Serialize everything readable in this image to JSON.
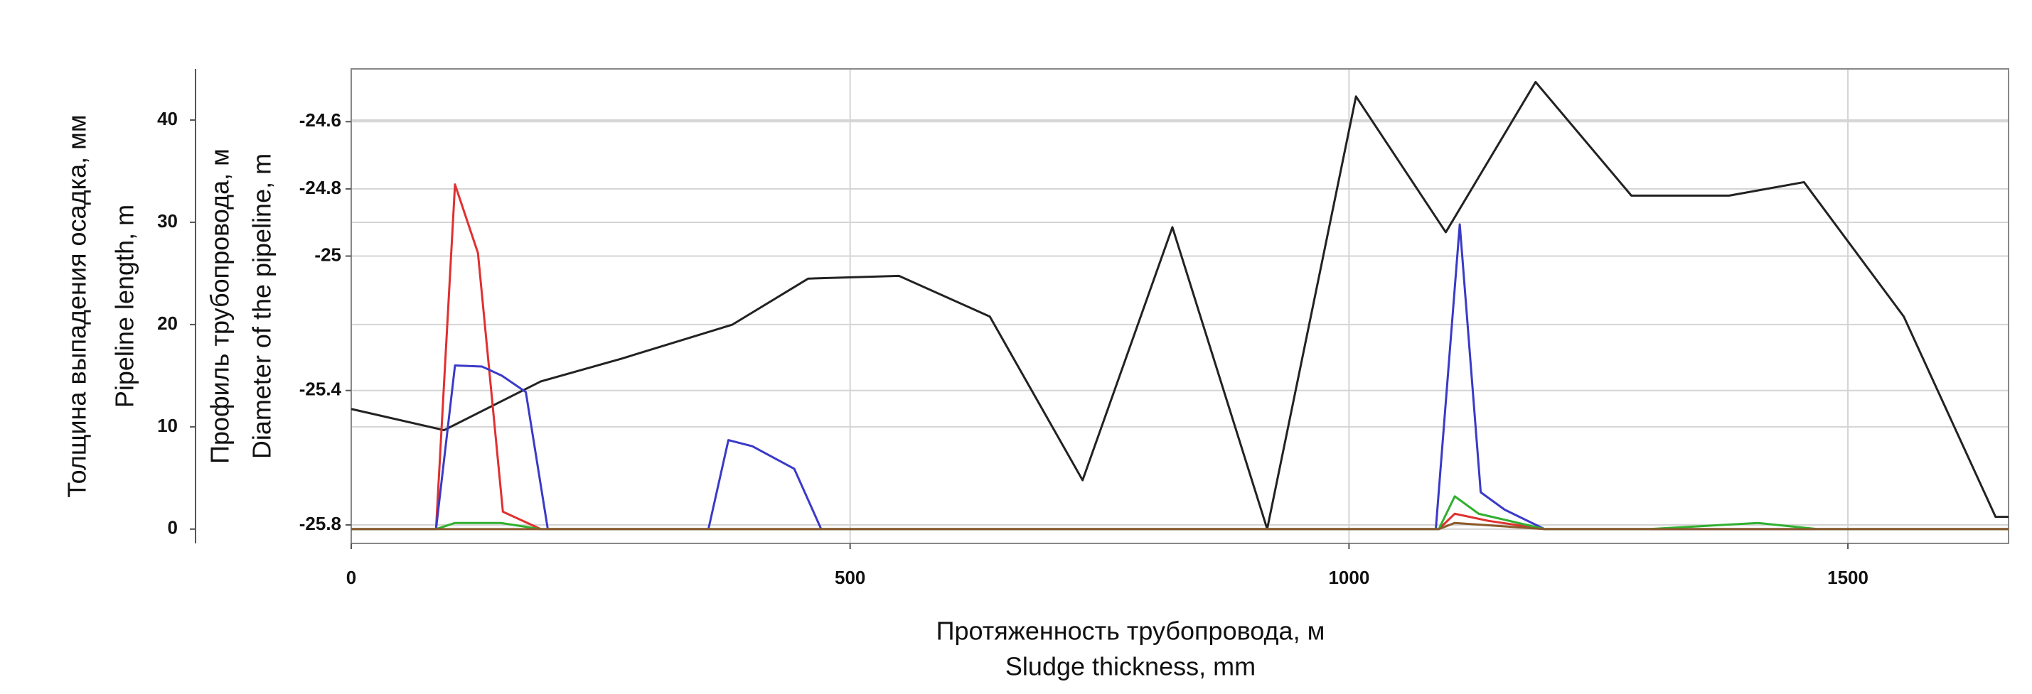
{
  "chart_data": {
    "type": "line",
    "xlabel": [
      "Протяженность трубопровода, м",
      "Sludge thickness, mm"
    ],
    "ylabel": [
      "Толщина выпадения осадка, мм",
      "Pipeline length, m"
    ],
    "y2label": [
      "Профиль трубопровода, м",
      "Diameter of the pipeline, m"
    ],
    "xlim": [
      0,
      1661
    ],
    "xticks": [
      0,
      500,
      1000,
      1500
    ],
    "ylim": [
      -1.4,
      45
    ],
    "yticks": [
      0,
      10,
      20,
      30,
      40
    ],
    "y2lim": [
      -25.855,
      -24.443
    ],
    "y2ticks": [
      -25.8,
      -25.4,
      -25,
      -24.8,
      -24.6
    ],
    "grid": true,
    "series": [
      {
        "color": "#222222",
        "axis": "y2",
        "x": [
          0,
          93,
          190,
          270,
          382,
          458,
          549,
          640,
          733,
          823,
          918,
          1007,
          1097,
          1187,
          1283,
          1381,
          1456,
          1556,
          1648,
          1661
        ],
        "values": [
          -25.455,
          -25.518,
          -25.373,
          -25.306,
          -25.204,
          -25.067,
          -25.059,
          -25.18,
          -25.667,
          -24.914,
          -25.812,
          -24.525,
          -24.929,
          -24.482,
          -24.82,
          -24.82,
          -24.78,
          -25.18,
          -25.776,
          -25.776
        ]
      },
      {
        "color": "#e03030",
        "x": [
          0,
          85,
          104,
          127,
          152,
          190,
          1090,
          1106,
          1140,
          1196,
          1661
        ],
        "values": [
          0,
          0,
          33.7,
          27,
          1.7,
          0,
          0,
          1.5,
          0.8,
          0,
          0
        ]
      },
      {
        "color": "#3a3ac8",
        "x": [
          0,
          85,
          104,
          131,
          151,
          175,
          197,
          358,
          378,
          402,
          444,
          471,
          1087,
          1111,
          1132,
          1156,
          1196,
          1661
        ],
        "values": [
          0,
          0,
          16,
          15.9,
          15,
          13.4,
          0,
          0,
          8.7,
          8.1,
          5.9,
          0,
          0,
          29.8,
          3.6,
          1.9,
          0,
          0
        ]
      },
      {
        "color": "#30b030",
        "x": [
          0,
          85,
          104,
          150,
          190,
          1090,
          1106,
          1130,
          1196,
          1300,
          1410,
          1470,
          1661
        ],
        "values": [
          0,
          0,
          0.6,
          0.6,
          0,
          0,
          3.2,
          1.5,
          0,
          0,
          0.6,
          0,
          0
        ]
      },
      {
        "color": "#8b5a2b",
        "x": [
          0,
          1090,
          1106,
          1196,
          1661
        ],
        "values": [
          0,
          0,
          0.6,
          0,
          0
        ]
      }
    ]
  }
}
